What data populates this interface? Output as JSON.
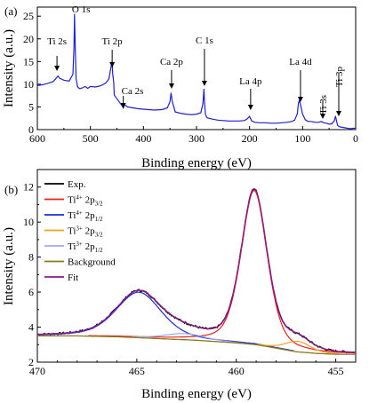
{
  "chart_data": [
    {
      "panel": "(a)",
      "type": "line",
      "xlabel": "Binding energy (eV)",
      "ylabel": "Intensity (a.u.)",
      "xlim": [
        600,
        0
      ],
      "ylim": [
        0,
        27
      ],
      "x_ticks": [
        600,
        500,
        400,
        300,
        200,
        100,
        0
      ],
      "y_ticks": [
        0,
        5,
        10,
        15,
        20,
        25
      ],
      "series": [
        {
          "color": "#1f1fd6",
          "x": [
            600,
            590,
            580,
            570,
            564,
            561,
            558,
            550,
            540,
            533,
            531,
            530,
            529,
            527,
            524,
            520,
            515,
            510,
            505,
            500,
            490,
            480,
            472,
            468,
            465,
            462,
            459,
            458,
            456,
            455,
            450,
            445,
            440,
            438,
            436,
            430,
            420,
            410,
            400,
            390,
            380,
            365,
            355,
            350,
            348,
            346,
            340,
            330,
            320,
            310,
            300,
            292,
            288,
            286,
            285,
            283,
            280,
            270,
            260,
            250,
            240,
            230,
            220,
            210,
            205,
            200,
            198,
            196,
            190,
            180,
            170,
            160,
            150,
            140,
            130,
            120,
            115,
            110,
            108,
            106,
            103,
            100,
            95,
            90,
            85,
            80,
            75,
            70,
            65,
            60,
            55,
            50,
            45,
            40,
            38,
            36,
            34,
            30,
            20,
            10,
            5,
            0
          ],
          "y": [
            9.7,
            9.9,
            10.2,
            10.6,
            11.4,
            11.8,
            11.3,
            10.9,
            10.7,
            12.2,
            18,
            25.5,
            20,
            11.2,
            9.4,
            9.0,
            9.2,
            9.5,
            9.1,
            9.5,
            9.4,
            9.7,
            10.2,
            10.7,
            11.2,
            13.2,
            15,
            12.3,
            10.4,
            7.6,
            6.8,
            6.0,
            5.2,
            4.8,
            5.5,
            5.0,
            4.8,
            4.6,
            4.5,
            4.4,
            4.3,
            4.4,
            4.8,
            6.2,
            8.1,
            6.3,
            3.9,
            3.6,
            3.4,
            3.3,
            3.4,
            3.7,
            5.7,
            9.0,
            6.0,
            3.3,
            2.6,
            2.3,
            2.1,
            2.0,
            1.9,
            1.9,
            1.9,
            2.0,
            2.3,
            2.9,
            2.4,
            1.9,
            1.6,
            1.5,
            1.5,
            1.4,
            1.4,
            1.5,
            1.6,
            1.8,
            2.1,
            3.5,
            5.8,
            6.5,
            5.0,
            3.4,
            2.2,
            1.8,
            1.8,
            1.7,
            1.6,
            1.6,
            1.8,
            1.5,
            1.4,
            1.2,
            1.3,
            2.0,
            3.0,
            1.9,
            0.9,
            0.6,
            0.4,
            0.2,
            0.3,
            0.3
          ]
        }
      ],
      "annotations": [
        {
          "text": "Ti 2s",
          "x": 563,
          "y": 11.3,
          "arrow": true
        },
        {
          "text": "O 1s",
          "x": 531,
          "y": 25.6,
          "arrow": false
        },
        {
          "text": "Ti 2p",
          "x": 459,
          "y": 15.2,
          "arrow": true
        },
        {
          "text": "Ca 2s",
          "x": 438,
          "y": 5.2,
          "arrow": true
        },
        {
          "text": "Ca 2p",
          "x": 347,
          "y": 8.3,
          "arrow": true
        },
        {
          "text": "C 1s",
          "x": 285,
          "y": 9.2,
          "arrow": true
        },
        {
          "text": "La 4p",
          "x": 198,
          "y": 3.1,
          "arrow": true
        },
        {
          "text": "La 4d",
          "x": 104,
          "y": 6.7,
          "arrow": true
        },
        {
          "text": "Ti 3s",
          "x": 63,
          "y": 2.2,
          "arrow": true
        },
        {
          "text": "Ti 3p",
          "x": 37,
          "y": 3.2,
          "arrow": true
        }
      ]
    },
    {
      "panel": "(b)",
      "type": "line",
      "xlabel": "Binding energy (eV)",
      "ylabel": "Intensity (a.u.)",
      "xlim": [
        470,
        454
      ],
      "ylim": [
        2,
        13
      ],
      "x_ticks": [
        470,
        465,
        460,
        455
      ],
      "y_ticks": [
        2,
        4,
        6,
        8,
        10,
        12
      ],
      "legend": {
        "placement": "top-left",
        "entries": [
          {
            "label": "Exp.",
            "sub": "",
            "sup": "",
            "color": "#000000"
          },
          {
            "label": "Ti",
            "sup": "4+",
            "sub": "3/2",
            "color": "#e8211f"
          },
          {
            "label": "Ti",
            "sup": "4+",
            "sub": "1/2",
            "color": "#1f2bd6"
          },
          {
            "label": "Ti",
            "sup": "3+",
            "sub": "3/2",
            "color": "#f2a31b"
          },
          {
            "label": "Ti",
            "sup": "3+",
            "sub": "1/2",
            "color": "#9fa8ef"
          },
          {
            "label": "Background",
            "sub": "",
            "sup": "",
            "color": "#8a7a1a"
          },
          {
            "label": "Fit",
            "sub": "",
            "sup": "",
            "color": "#8c1a8c"
          }
        ]
      },
      "components": {
        "background": [
          [
            470,
            3.5
          ],
          [
            468,
            3.5
          ],
          [
            466,
            3.45
          ],
          [
            464,
            3.35
          ],
          [
            462,
            3.25
          ],
          [
            460,
            3.1
          ],
          [
            459,
            3.0
          ],
          [
            458,
            2.8
          ],
          [
            457,
            2.6
          ],
          [
            456,
            2.5
          ],
          [
            455,
            2.45
          ],
          [
            454,
            2.45
          ]
        ],
        "ti4_2p32": {
          "center": 459.1,
          "height": 8.8,
          "fwhm": 1.55
        },
        "ti4_2p12": {
          "center": 464.9,
          "height": 2.6,
          "fwhm": 2.7
        },
        "ti3_2p32": {
          "center": 456.9,
          "height": 0.6,
          "fwhm": 1.5
        },
        "ti3_2p12": {
          "center": 462.6,
          "height": 0.35,
          "fwhm": 2.4
        }
      }
    }
  ],
  "labels": {
    "panel_a": "(a)",
    "panel_b": "(b)",
    "peak_ti2s": "Ti 2s",
    "peak_o1s": "O 1s",
    "peak_ti2p": "Ti 2p",
    "peak_ca2s": "Ca 2s",
    "peak_ca2p": "Ca 2p",
    "peak_c1s": "C 1s",
    "peak_la4p": "La 4p",
    "peak_la4d": "La 4d",
    "peak_ti3s": "Ti 3s",
    "peak_ti3p": "Ti 3p"
  }
}
